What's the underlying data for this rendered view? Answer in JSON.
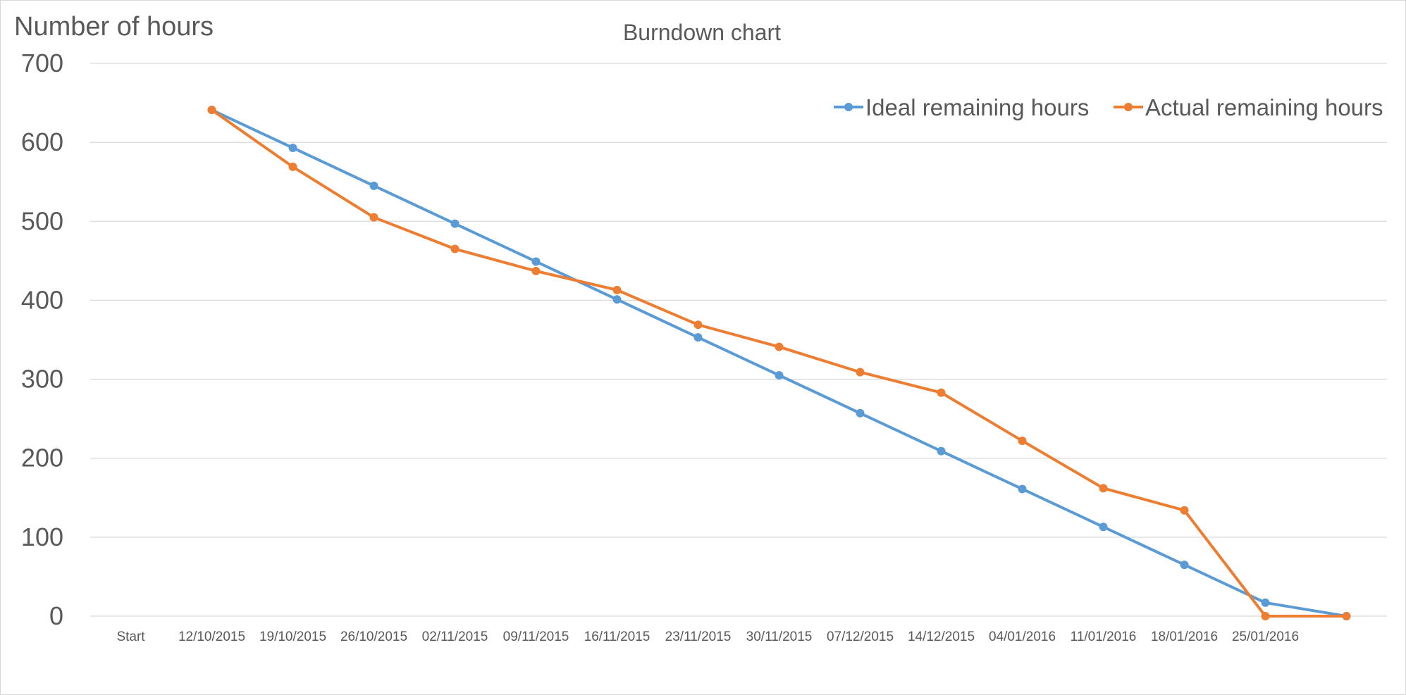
{
  "chart_data": {
    "type": "line",
    "title": "Burndown chart",
    "ylabel": "Number of hours",
    "xlabel": "",
    "ylim": [
      0,
      700
    ],
    "yticks": [
      0,
      100,
      200,
      300,
      400,
      500,
      600,
      700
    ],
    "ytick_labels": [
      "0",
      "100",
      "200",
      "300",
      "400",
      "500",
      "600",
      "700"
    ],
    "grid": true,
    "legend_position": "top-right",
    "categories": [
      "Start",
      "12/10/2015",
      "19/10/2015",
      "26/10/2015",
      "02/11/2015",
      "09/11/2015",
      "16/11/2015",
      "23/11/2015",
      "30/11/2015",
      "07/12/2015",
      "14/12/2015",
      "04/01/2016",
      "11/01/2016",
      "18/01/2016",
      "25/01/2016",
      ""
    ],
    "series": [
      {
        "name": "Ideal remaining hours",
        "color": "#5b9bd5",
        "values": [
          null,
          641,
          593,
          545,
          497,
          449,
          401,
          353,
          305,
          257,
          209,
          161,
          113,
          65,
          17,
          0
        ]
      },
      {
        "name": "Actual remaining hours",
        "color": "#ed7d31",
        "values": [
          null,
          641,
          569,
          505,
          465,
          437,
          413,
          369,
          341,
          309,
          283,
          222,
          162,
          134,
          0,
          0
        ]
      }
    ]
  }
}
